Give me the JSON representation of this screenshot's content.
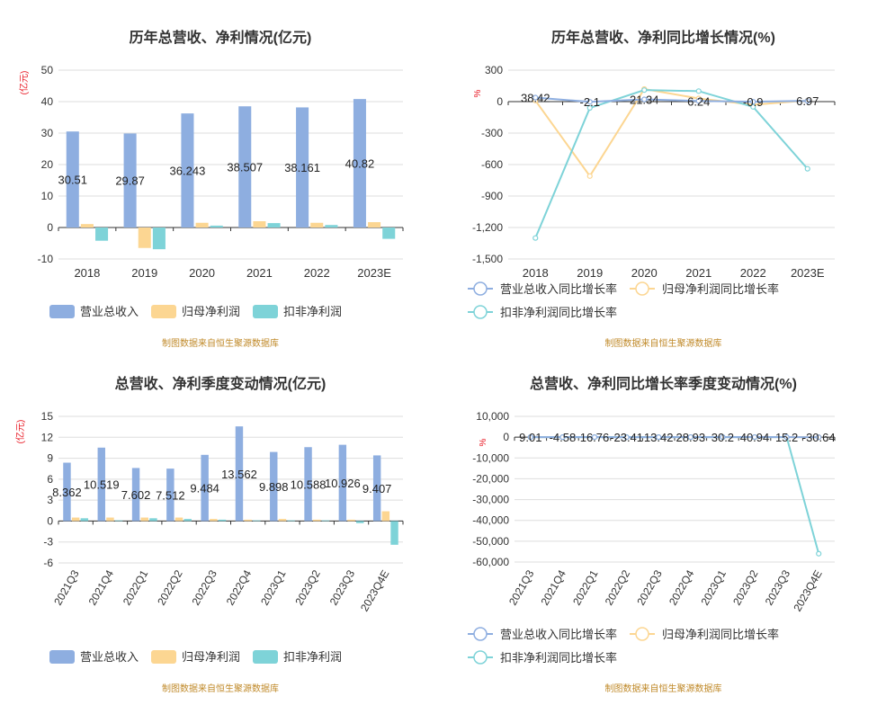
{
  "colors": {
    "revenue": "#8eaee0",
    "net_profit": "#fcd692",
    "deducted_profit": "#7ed3d8",
    "grid": "#dddddd",
    "axis_text": "#333333",
    "unit_text": "#e8141f",
    "source_text": "#c08a2a"
  },
  "source_note": "制图数据来自恒生聚源数据库",
  "chart_data": [
    {
      "type": "bar",
      "title": "历年总营收、净利情况(亿元)",
      "ylabel": "(亿元)",
      "categories": [
        "2018",
        "2019",
        "2020",
        "2021",
        "2022",
        "2023E"
      ],
      "ylim": [
        -10,
        50
      ],
      "yticks": [
        -10,
        0,
        10,
        20,
        30,
        40,
        50
      ],
      "series": [
        {
          "name": "营业总收入",
          "values": [
            30.51,
            29.87,
            36.243,
            38.507,
            38.161,
            40.82
          ],
          "labels": [
            "30.51",
            "29.87",
            "36.243",
            "38.507",
            "38.161",
            "40.82"
          ]
        },
        {
          "name": "归母净利润",
          "values": [
            1.1,
            -6.5,
            1.5,
            2.0,
            1.5,
            1.7
          ]
        },
        {
          "name": "扣非净利润",
          "values": [
            -4.2,
            -6.9,
            0.6,
            1.4,
            0.8,
            -3.6
          ]
        }
      ],
      "legend": "bottom"
    },
    {
      "type": "line",
      "title": "历年总营收、净利同比增长情况(%)",
      "ylabel": "%",
      "categories": [
        "2018",
        "2019",
        "2020",
        "2021",
        "2022",
        "2023E"
      ],
      "ylim": [
        -1500,
        300
      ],
      "yticks": [
        "300",
        "0",
        "-300",
        "-600",
        "-900",
        "-1,200",
        "-1,500"
      ],
      "ytick_values": [
        300,
        0,
        -300,
        -600,
        -900,
        -1200,
        -1500
      ],
      "series": [
        {
          "name": "营业总收入同比增长率",
          "values": [
            38.42,
            -2.1,
            21.34,
            6.24,
            -0.9,
            6.97
          ],
          "labels": [
            "38.42",
            "-2.1",
            "21.34",
            "6.24",
            "-0.9",
            "6.97"
          ]
        },
        {
          "name": "归母净利润同比增长率",
          "values": [
            10,
            -710,
            120,
            30,
            -30,
            10
          ]
        },
        {
          "name": "扣非净利润同比增长率",
          "values": [
            -1300,
            -60,
            110,
            100,
            -50,
            -640
          ]
        }
      ],
      "legend": "bottom"
    },
    {
      "type": "bar",
      "title": "总营收、净利季度变动情况(亿元)",
      "ylabel": "(亿元)",
      "categories": [
        "2021Q3",
        "2021Q4",
        "2022Q1",
        "2022Q2",
        "2022Q3",
        "2022Q4",
        "2023Q1",
        "2023Q2",
        "2023Q3",
        "2023Q4E"
      ],
      "ylim": [
        -6,
        15
      ],
      "yticks": [
        -6,
        -3,
        0,
        3,
        6,
        9,
        12,
        15
      ],
      "series": [
        {
          "name": "营业总收入",
          "values": [
            8.362,
            10.519,
            7.602,
            7.512,
            9.484,
            13.562,
            9.898,
            10.588,
            10.926,
            9.407
          ],
          "labels": [
            "8.362",
            "10.519",
            "7.602",
            "7.512",
            "9.484",
            "13.562",
            "9.898",
            "10.588",
            "10.926",
            "9.407"
          ]
        },
        {
          "name": "归母净利润",
          "values": [
            0.5,
            0.5,
            0.5,
            0.5,
            0.3,
            0.2,
            0.3,
            0.2,
            0.2,
            1.4
          ]
        },
        {
          "name": "扣非净利润",
          "values": [
            0.4,
            0.1,
            0.4,
            0.3,
            0.2,
            0.1,
            0.1,
            0.1,
            -0.3,
            -3.4
          ]
        }
      ],
      "legend": "bottom"
    },
    {
      "type": "line",
      "title": "总营收、净利同比增长率季度变动情况(%)",
      "ylabel": "%",
      "categories": [
        "2021Q3",
        "2021Q4",
        "2022Q1",
        "2022Q2",
        "2022Q3",
        "2022Q4",
        "2023Q1",
        "2023Q2",
        "2023Q3",
        "2023Q4E"
      ],
      "ylim": [
        -60000,
        10000
      ],
      "yticks": [
        "10,000",
        "0",
        "-10,000",
        "-20,000",
        "-30,000",
        "-40,000",
        "-50,000",
        "-60,000"
      ],
      "ytick_values": [
        10000,
        0,
        -10000,
        -20000,
        -30000,
        -40000,
        -50000,
        -60000
      ],
      "series": [
        {
          "name": "营业总收入同比增长率",
          "values": [
            9.01,
            -4.58,
            16.76,
            -23.41,
            13.42,
            28.93,
            30.2,
            40.94,
            15.2,
            -30.64
          ],
          "labels": [
            "9.01",
            "-4.58",
            "16.76",
            "-23.41",
            "13.42",
            "28.93",
            "30.2",
            "40.94",
            "15.2",
            "-30.64"
          ]
        },
        {
          "name": "归母净利润同比增长率",
          "values": [
            0,
            0,
            0,
            0,
            0,
            0,
            0,
            0,
            0,
            0
          ]
        },
        {
          "name": "扣非净利润同比增长率",
          "values": [
            0,
            0,
            0,
            0,
            0,
            0,
            0,
            0,
            0,
            -56000
          ]
        }
      ],
      "legend": "bottom"
    }
  ]
}
